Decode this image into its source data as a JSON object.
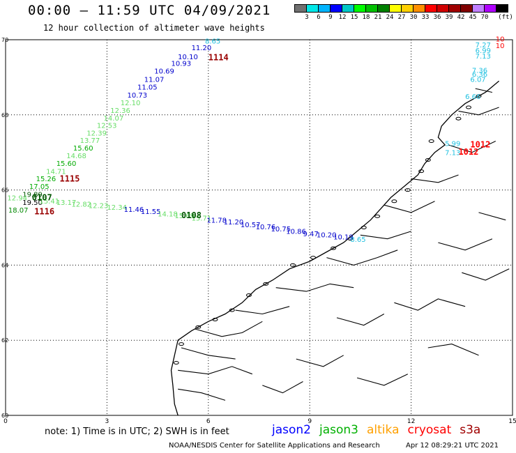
{
  "header": {
    "title": "00:00 – 11:59 UTC 04/09/2021",
    "subtitle": "12 hour collection of altimeter wave heights"
  },
  "scale": {
    "unit_label": "(ft)",
    "colors": [
      "#707070",
      "#00e8e8",
      "#00b4ff",
      "#0000ff",
      "#00c8c8",
      "#00ff00",
      "#00c000",
      "#008000",
      "#ffff00",
      "#ffd000",
      "#ff9000",
      "#ff0000",
      "#d00000",
      "#a00000",
      "#800000",
      "#c080ff",
      "#b000ff",
      "#000000"
    ],
    "labels": [
      "3",
      "6",
      "9",
      "12",
      "15",
      "18",
      "21",
      "24",
      "27",
      "30",
      "33",
      "36",
      "39",
      "42",
      "45",
      "70"
    ]
  },
  "axes": {
    "x_ticks": [
      "0",
      "3",
      "6",
      "9",
      "12",
      "15"
    ],
    "y_ticks": [
      "70",
      "68",
      "66",
      "64",
      "62",
      "60"
    ]
  },
  "map": {
    "land_color": "#000000",
    "grid_color": "#000000",
    "track_colors": {
      "jason2": "#0000cc",
      "jason3": "#00aa00",
      "altika": "#ff8800",
      "cryosat": "#cc0000",
      "s3a": "#990000"
    }
  },
  "observations": {
    "track1": {
      "label_color_cyan": "#20c0e0",
      "values": [
        {
          "lon": 5.9,
          "lat": 69.9,
          "text": "8.65",
          "color": "#20c0e0"
        },
        {
          "lon": 5.5,
          "lat": 69.72,
          "text": "11.20",
          "color": "#0000cc"
        },
        {
          "lon": 5.1,
          "lat": 69.48,
          "text": "10.10",
          "color": "#0000cc"
        },
        {
          "lon": 4.9,
          "lat": 69.3,
          "text": "10.93",
          "color": "#0000cc"
        },
        {
          "lon": 4.4,
          "lat": 69.1,
          "text": "10.69",
          "color": "#0000cc"
        },
        {
          "lon": 4.1,
          "lat": 68.88,
          "text": "11.07",
          "color": "#0000cc"
        },
        {
          "lon": 3.9,
          "lat": 68.67,
          "text": "11.05",
          "color": "#0000cc"
        },
        {
          "lon": 3.6,
          "lat": 68.46,
          "text": "10.73",
          "color": "#0000cc"
        },
        {
          "lon": 3.4,
          "lat": 68.26,
          "text": "12.10",
          "color": "#66dd66"
        },
        {
          "lon": 3.1,
          "lat": 68.05,
          "text": "12.36",
          "color": "#66dd66"
        },
        {
          "lon": 2.9,
          "lat": 67.85,
          "text": "14.07",
          "color": "#66dd66"
        },
        {
          "lon": 2.7,
          "lat": 67.65,
          "text": "12.53",
          "color": "#66dd66"
        },
        {
          "lon": 2.4,
          "lat": 67.45,
          "text": "12.39",
          "color": "#66dd66"
        },
        {
          "lon": 2.2,
          "lat": 67.25,
          "text": "13.77",
          "color": "#66dd66"
        },
        {
          "lon": 2.0,
          "lat": 67.05,
          "text": "15.60",
          "color": "#00aa00"
        },
        {
          "lon": 1.8,
          "lat": 66.85,
          "text": "14.68",
          "color": "#66dd66"
        },
        {
          "lon": 1.5,
          "lat": 66.64,
          "text": "15.60",
          "color": "#00aa00"
        },
        {
          "lon": 1.2,
          "lat": 66.43,
          "text": "14.71",
          "color": "#66dd66"
        },
        {
          "lon": 0.9,
          "lat": 66.23,
          "text": "15.26",
          "color": "#00aa00"
        },
        {
          "lon": 0.7,
          "lat": 66.03,
          "text": "17.05",
          "color": "#00aa00"
        },
        {
          "lon": 0.5,
          "lat": 65.82,
          "text": "19.89",
          "color": "#005500"
        },
        {
          "lon": 0.05,
          "lat": 65.72,
          "text": "12.94",
          "color": "#66dd66"
        },
        {
          "lon": 0.5,
          "lat": 65.6,
          "text": "19.50",
          "color": "#000000"
        },
        {
          "lon": 0.08,
          "lat": 65.4,
          "text": "18.07",
          "color": "#008800"
        },
        {
          "lon": 1.0,
          "lat": 65.64,
          "text": "15.41",
          "color": "#66dd66"
        },
        {
          "lon": 1.5,
          "lat": 65.6,
          "text": "13.17",
          "color": "#66dd66"
        },
        {
          "lon": 1.95,
          "lat": 65.56,
          "text": "12.82",
          "color": "#66dd66"
        },
        {
          "lon": 2.45,
          "lat": 65.52,
          "text": "12.23",
          "color": "#66dd66"
        },
        {
          "lon": 3.0,
          "lat": 65.47,
          "text": "12.34",
          "color": "#66dd66"
        },
        {
          "lon": 3.5,
          "lat": 65.42,
          "text": "11.46",
          "color": "#0000cc"
        },
        {
          "lon": 4.0,
          "lat": 65.36,
          "text": "11.55",
          "color": "#0000cc"
        },
        {
          "lon": 4.5,
          "lat": 65.3,
          "text": "14.18",
          "color": "#66dd66"
        },
        {
          "lon": 5.0,
          "lat": 65.25,
          "text": "15.69",
          "color": "#66dd66"
        },
        {
          "lon": 5.5,
          "lat": 65.19,
          "text": "15.71",
          "color": "#66dd66"
        },
        {
          "lon": 5.95,
          "lat": 65.13,
          "text": "11.78",
          "color": "#0000cc"
        },
        {
          "lon": 6.45,
          "lat": 65.08,
          "text": "11.20",
          "color": "#0000cc"
        },
        {
          "lon": 6.95,
          "lat": 65.01,
          "text": "10.57",
          "color": "#0000cc"
        },
        {
          "lon": 7.4,
          "lat": 64.95,
          "text": "10.76",
          "color": "#0000cc"
        },
        {
          "lon": 7.85,
          "lat": 64.9,
          "text": "10.75",
          "color": "#0000cc"
        },
        {
          "lon": 8.3,
          "lat": 64.83,
          "text": "10.86",
          "color": "#0000cc"
        },
        {
          "lon": 8.8,
          "lat": 64.77,
          "text": "9.47",
          "color": "#0000cc"
        },
        {
          "lon": 9.2,
          "lat": 64.74,
          "text": "10.20",
          "color": "#0000cc"
        },
        {
          "lon": 9.7,
          "lat": 64.68,
          "text": "10.19",
          "color": "#0000cc"
        },
        {
          "lon": 10.2,
          "lat": 64.62,
          "text": "8.65",
          "color": "#20c0e0"
        }
      ]
    },
    "track2": {
      "values": [
        {
          "lon": 13.9,
          "lat": 69.8,
          "text": "7.27",
          "color": "#20c0e0"
        },
        {
          "lon": 13.9,
          "lat": 69.65,
          "text": "6.99",
          "color": "#20c0e0"
        },
        {
          "lon": 13.9,
          "lat": 69.5,
          "text": "7.13",
          "color": "#20c0e0"
        },
        {
          "lon": 13.8,
          "lat": 69.12,
          "text": "7.36",
          "color": "#20c0e0"
        },
        {
          "lon": 13.8,
          "lat": 69.02,
          "text": "6.36",
          "color": "#20c0e0"
        },
        {
          "lon": 13.75,
          "lat": 68.88,
          "text": "6.07",
          "color": "#20c0e0"
        },
        {
          "lon": 13.6,
          "lat": 68.42,
          "text": "6.66",
          "color": "#20c0e0"
        },
        {
          "lon": 13.0,
          "lat": 67.17,
          "text": "5.99",
          "color": "#20c0e0"
        },
        {
          "lon": 13.0,
          "lat": 66.93,
          "text": "7.13",
          "color": "#20c0e0"
        },
        {
          "lon": 14.5,
          "lat": 69.95,
          "text": "10",
          "color": "#ff0000"
        },
        {
          "lon": 14.5,
          "lat": 69.78,
          "text": "10",
          "color": "#ff0000"
        }
      ]
    },
    "time_labels": [
      {
        "lon": 6.0,
        "lat": 69.45,
        "text": "1114",
        "color": "#990000"
      },
      {
        "lon": 1.6,
        "lat": 66.22,
        "text": "1115",
        "color": "#990000"
      },
      {
        "lon": 0.85,
        "lat": 65.35,
        "text": "1116",
        "color": "#990000"
      },
      {
        "lon": 0.78,
        "lat": 65.72,
        "text": "0107",
        "color": "#005500"
      },
      {
        "lon": 5.2,
        "lat": 65.25,
        "text": "0108",
        "color": "#005500"
      },
      {
        "lon": 13.75,
        "lat": 67.13,
        "text": "1012",
        "color": "#ff0000"
      },
      {
        "lon": 13.4,
        "lat": 66.94,
        "text": "1012",
        "color": "#ff0000"
      }
    ]
  },
  "footer": {
    "note": "note: 1) Time is in UTC; 2) SWH is in feet",
    "legend": [
      {
        "text": "jason2",
        "color": "#0000ff"
      },
      {
        "text": "jason3",
        "color": "#00b000"
      },
      {
        "text": "altika",
        "color": "#ffa000"
      },
      {
        "text": "cryosat",
        "color": "#ff0000"
      },
      {
        "text": "s3a",
        "color": "#a00000"
      }
    ],
    "credit": "NOAA/NESDIS Center for Satellite Applications and Research",
    "timestamp": "Apr 12 08:29:21 UTC 2021"
  }
}
